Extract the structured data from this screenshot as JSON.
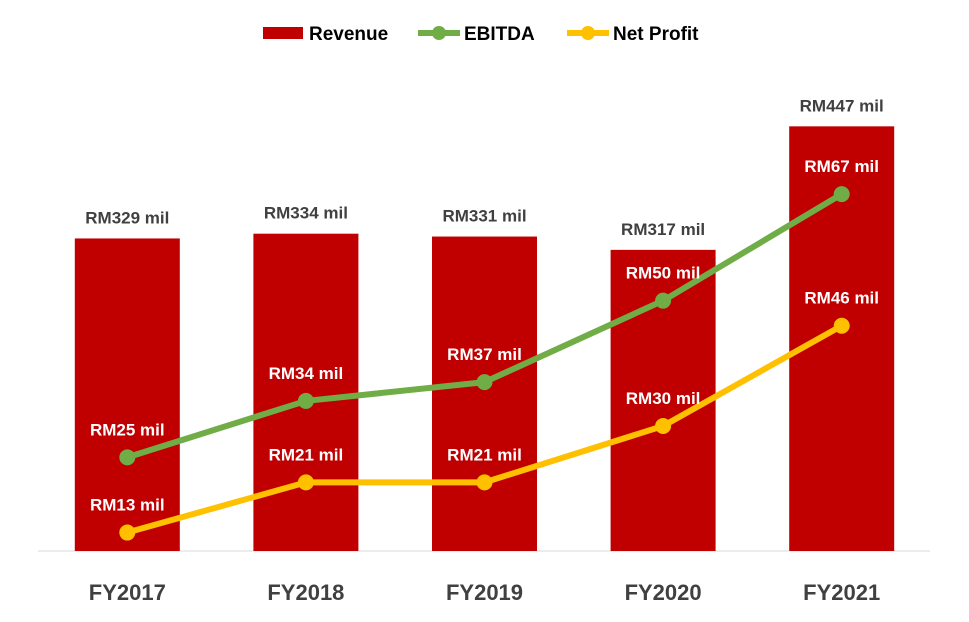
{
  "chart_data": {
    "type": "bar",
    "title": "",
    "xlabel": "",
    "ylabel": "",
    "categories": [
      "FY2017",
      "FY2018",
      "FY2019",
      "FY2020",
      "FY2021"
    ],
    "ylim": [
      0,
      500
    ],
    "grid": false,
    "legend_position": "top-center",
    "series": [
      {
        "name": "Revenue",
        "type": "bar",
        "color": "#c00000",
        "values": [
          329,
          334,
          331,
          317,
          447
        ],
        "labels": [
          "RM329 mil",
          "RM334 mil",
          "RM331 mil",
          "RM317 mil",
          "RM447 mil"
        ]
      },
      {
        "name": "EBITDA",
        "type": "line",
        "color": "#70ad47",
        "values": [
          25,
          34,
          37,
          50,
          67
        ],
        "labels": [
          "RM25 mil",
          "RM34 mil",
          "RM37 mil",
          "RM50 mil",
          "RM67 mil"
        ]
      },
      {
        "name": "Net Profit",
        "type": "line",
        "color": "#ffc000",
        "values": [
          13,
          21,
          21,
          30,
          46
        ],
        "labels": [
          "RM13 mil",
          "RM21 mil",
          "RM21 mil",
          "RM30 mil",
          "RM46 mil"
        ]
      }
    ]
  }
}
